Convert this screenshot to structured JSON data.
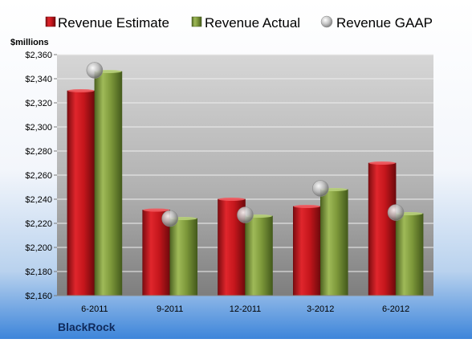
{
  "chart_data": {
    "type": "bar",
    "company": "BlackRock",
    "unit_label": "$millions",
    "categories": [
      "6-2011",
      "9-2011",
      "12-2011",
      "3-2012",
      "6-2012"
    ],
    "series": [
      {
        "name": "Revenue Estimate",
        "values": [
          2330,
          2231,
          2240,
          2234,
          2270
        ],
        "color": "#c8171e"
      },
      {
        "name": "Revenue Actual",
        "values": [
          2346,
          2224,
          2226,
          2248,
          2228
        ],
        "color": "#7f9a3a"
      },
      {
        "name": "Revenue GAAP",
        "values": [
          2347,
          2224,
          2227,
          2249,
          2229
        ],
        "color": "#b4b4b4",
        "style": "marker"
      }
    ],
    "ylim": [
      2160,
      2360
    ],
    "ytick_step": 20,
    "y_tick_labels": [
      "$2,160",
      "$2,180",
      "$2,200",
      "$2,220",
      "$2,240",
      "$2,260",
      "$2,280",
      "$2,300",
      "$2,320",
      "$2,340",
      "$2,360"
    ],
    "grid": true,
    "legend_position": "top"
  }
}
